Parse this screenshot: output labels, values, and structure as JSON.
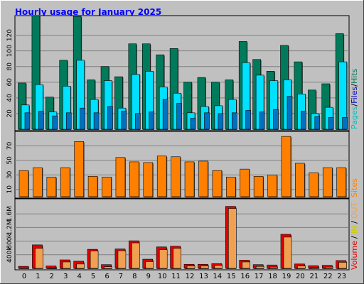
{
  "title": "Hourly usage for January 2025",
  "colors": {
    "background": "#c0c0c0",
    "plot_bg": "#c0c0c0",
    "title": "#0000ff",
    "hits": "#007a5a",
    "files": "#00e0ff",
    "pages": "#0070c0",
    "sites": "#ff8000",
    "volume": "#e00000",
    "in": "#cccc00",
    "out": "#f0a050"
  },
  "legend": {
    "pages": "Pages",
    "files": "Files",
    "hits": "Hits",
    "sites": "Sites",
    "volume": "Volume",
    "in": "IN",
    "out": "OUT",
    "sep": "/"
  },
  "chart_data": [
    {
      "type": "bar",
      "panel": "hits-files-pages",
      "categories": [
        "0",
        "1",
        "2",
        "3",
        "4",
        "5",
        "6",
        "7",
        "8",
        "9",
        "10",
        "11",
        "12",
        "13",
        "14",
        "15",
        "16",
        "17",
        "18",
        "19",
        "20",
        "21",
        "22",
        "23"
      ],
      "ylim": [
        0,
        145
      ],
      "ytick_labels": [
        "20",
        "40",
        "60",
        "80",
        "100",
        "120"
      ],
      "ytick_values": [
        20,
        40,
        60,
        80,
        100,
        120
      ],
      "grid": true,
      "series": [
        {
          "name": "Hits",
          "values": [
            59,
            145,
            41,
            88,
            144,
            63,
            80,
            67,
            109,
            109,
            95,
            103,
            60,
            66,
            60,
            63,
            112,
            89,
            74,
            107,
            86,
            50,
            58,
            122
          ]
        },
        {
          "name": "Files",
          "values": [
            31,
            57,
            22,
            55,
            88,
            38,
            62,
            27,
            70,
            74,
            54,
            46,
            21,
            29,
            30,
            38,
            85,
            69,
            62,
            63,
            45,
            20,
            28,
            86
          ]
        },
        {
          "name": "Pages",
          "values": [
            21,
            23,
            17,
            21,
            27,
            21,
            29,
            23,
            20,
            22,
            38,
            33,
            14,
            21,
            20,
            21,
            24,
            22,
            25,
            42,
            23,
            16,
            15,
            15
          ]
        }
      ]
    },
    {
      "type": "bar",
      "panel": "sites",
      "categories": [
        "0",
        "1",
        "2",
        "3",
        "4",
        "5",
        "6",
        "7",
        "8",
        "9",
        "10",
        "11",
        "12",
        "13",
        "14",
        "15",
        "16",
        "17",
        "18",
        "19",
        "20",
        "21",
        "22",
        "23"
      ],
      "ylim": [
        0,
        90
      ],
      "ytick_labels": [
        "10",
        "30",
        "50",
        "70"
      ],
      "ytick_values": [
        10,
        30,
        50,
        70
      ],
      "grid": true,
      "series": [
        {
          "name": "Sites",
          "values": [
            36,
            40,
            27,
            40,
            76,
            28,
            27,
            54,
            48,
            47,
            56,
            55,
            48,
            49,
            36,
            27,
            38,
            28,
            30,
            83,
            46,
            33,
            40,
            40
          ]
        }
      ]
    },
    {
      "type": "bar",
      "panel": "volume",
      "categories": [
        "0",
        "1",
        "2",
        "3",
        "4",
        "5",
        "6",
        "7",
        "8",
        "9",
        "10",
        "11",
        "12",
        "13",
        "14",
        "15",
        "16",
        "17",
        "18",
        "19",
        "20",
        "21",
        "22",
        "23"
      ],
      "ylim": [
        0,
        2000000
      ],
      "ytick_labels": [
        "400k",
        "800k",
        "1.2M",
        "1.6M"
      ],
      "ytick_values": [
        400000,
        800000,
        1200000,
        1600000
      ],
      "grid": true,
      "series": [
        {
          "name": "Volume",
          "values": [
            60000,
            690000,
            70000,
            250000,
            210000,
            560000,
            110000,
            570000,
            810000,
            270000,
            630000,
            650000,
            120000,
            120000,
            140000,
            1820000,
            240000,
            110000,
            100000,
            1000000,
            130000,
            80000,
            90000,
            230000
          ]
        },
        {
          "name": "OUT",
          "values": [
            40000,
            630000,
            50000,
            230000,
            170000,
            550000,
            90000,
            560000,
            790000,
            240000,
            590000,
            630000,
            110000,
            110000,
            130000,
            1800000,
            230000,
            100000,
            80000,
            960000,
            110000,
            70000,
            80000,
            220000
          ]
        }
      ]
    }
  ]
}
